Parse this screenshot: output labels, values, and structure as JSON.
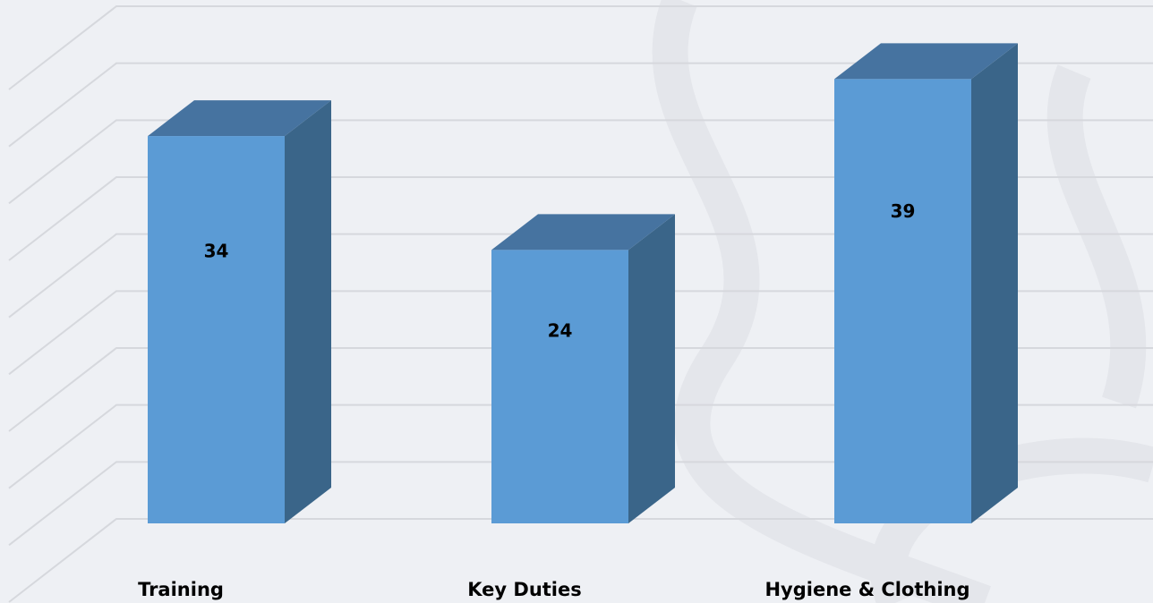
{
  "chart_data": {
    "type": "bar3d",
    "categories": [
      "Training",
      "Key Duties",
      "Hygiene & Clothing"
    ],
    "values": [
      34,
      24,
      39
    ],
    "color": "#5b9bd5",
    "ylim": [
      0,
      45
    ],
    "yticks": [
      0,
      5,
      10,
      15,
      20,
      25,
      30,
      35,
      40,
      45
    ],
    "grid": true
  }
}
